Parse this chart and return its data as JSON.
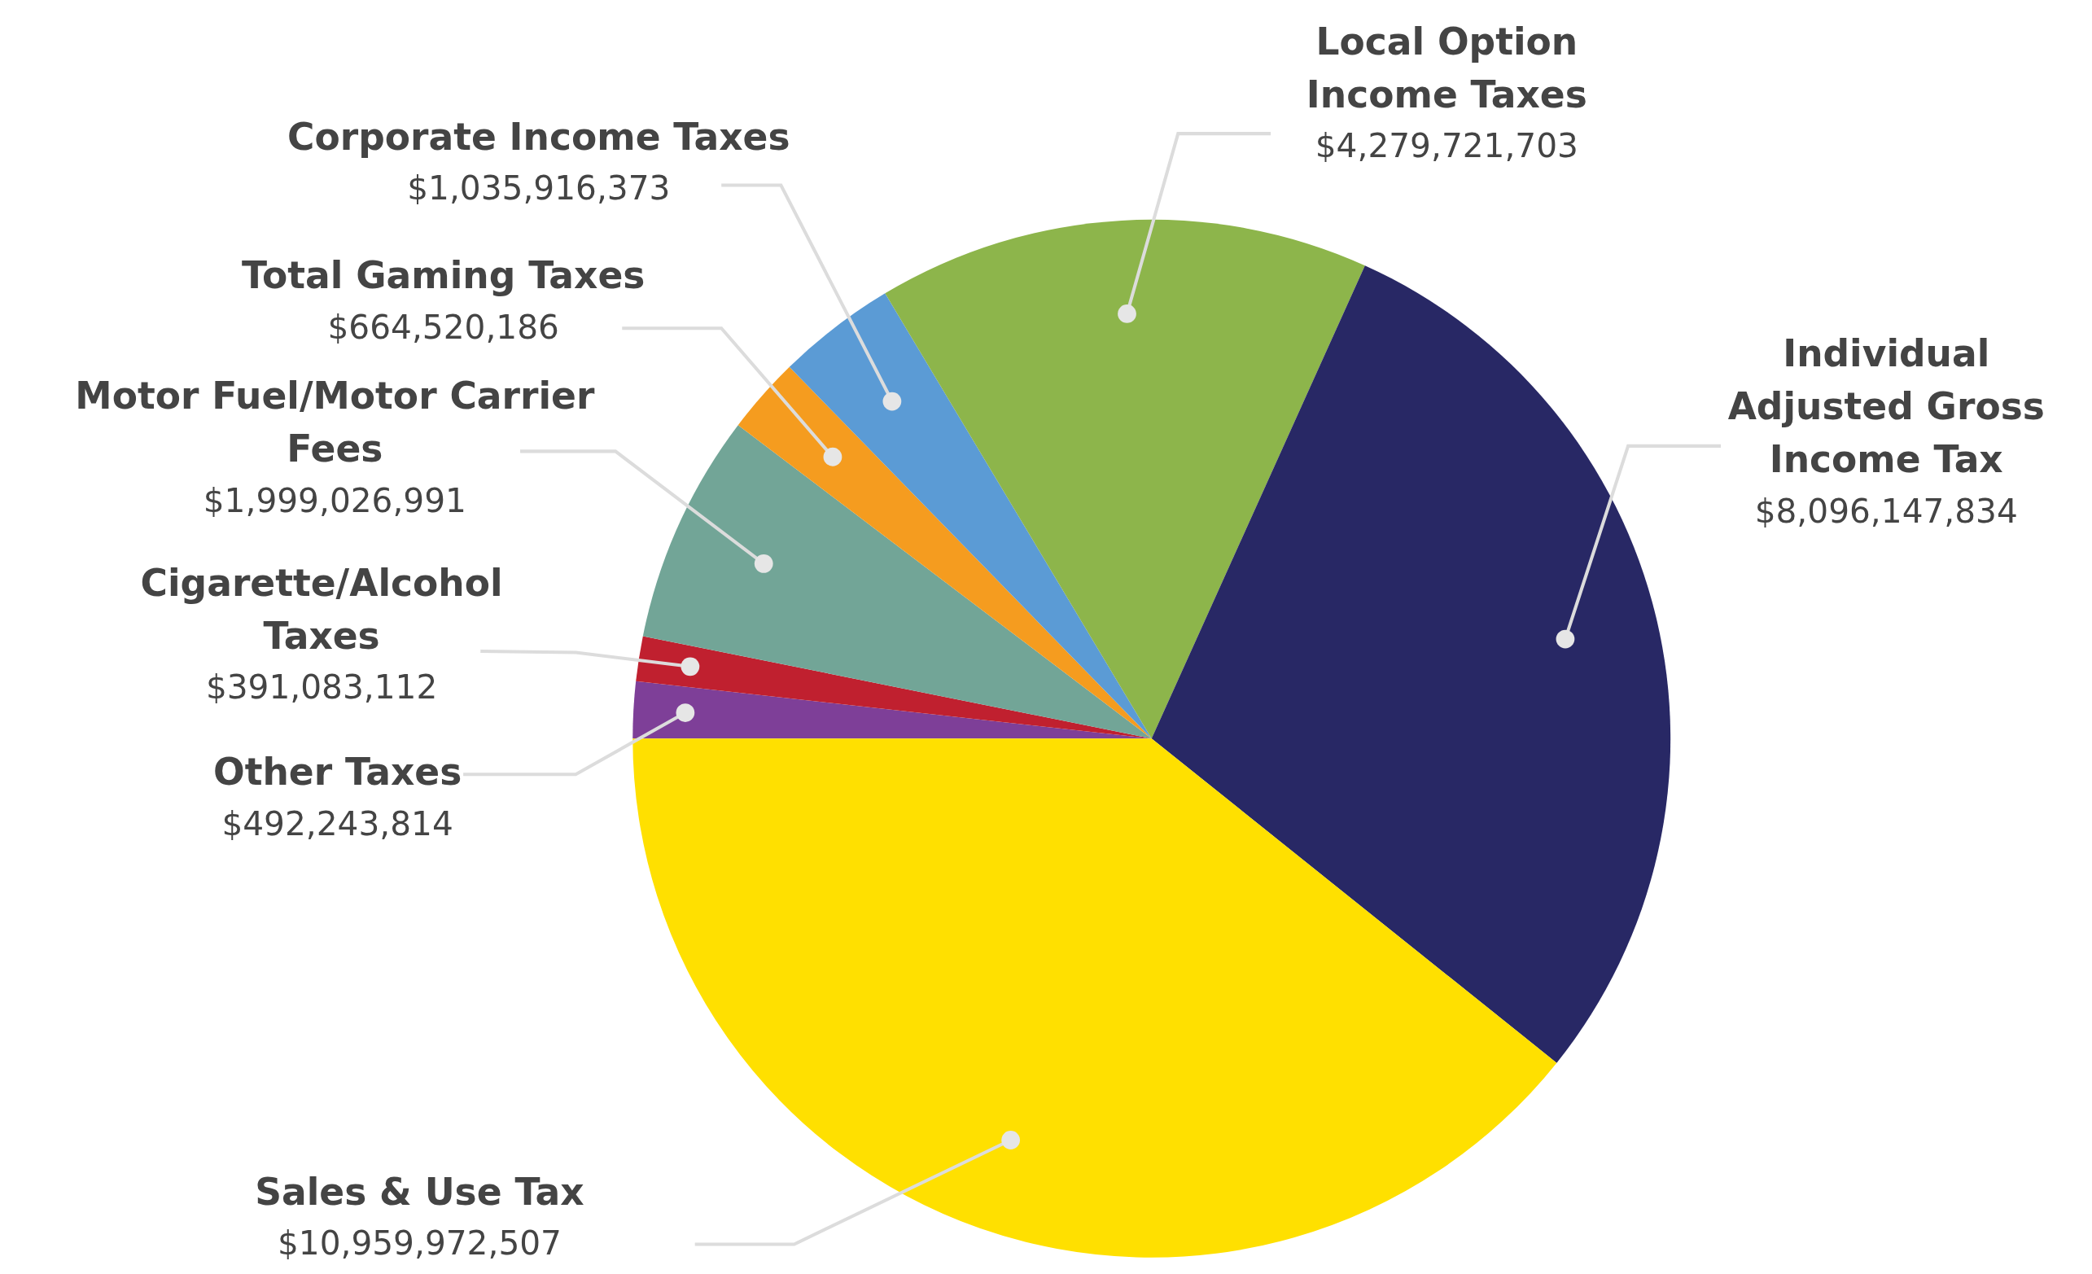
{
  "chart_data": {
    "type": "pie",
    "categories": [
      "Other Taxes",
      "Cigarette/Alcohol Taxes",
      "Motor Fuel/Motor Carrier Fees",
      "Total Gaming Taxes",
      "Corporate Income Taxes",
      "Local Option Income Taxes",
      "Individual Adjusted Gross Income Tax",
      "Sales & Use Tax"
    ],
    "values": [
      492243814,
      391083112,
      1999026991,
      664520186,
      1035916373,
      4279721703,
      8096147834,
      10959972507
    ],
    "value_labels": [
      "$492,243,814",
      "$391,083,112",
      "$1,999,026,991",
      "$664,520,186",
      "$1,035,916,373",
      "$4,279,721,703",
      "$8,096,147,834",
      "$10,959,972,507"
    ],
    "colors": [
      "#7e3f98",
      "#c0202f",
      "#72a597",
      "#f59c1f",
      "#5b9bd5",
      "#8db54b",
      "#282865",
      "#ffe000"
    ]
  }
}
